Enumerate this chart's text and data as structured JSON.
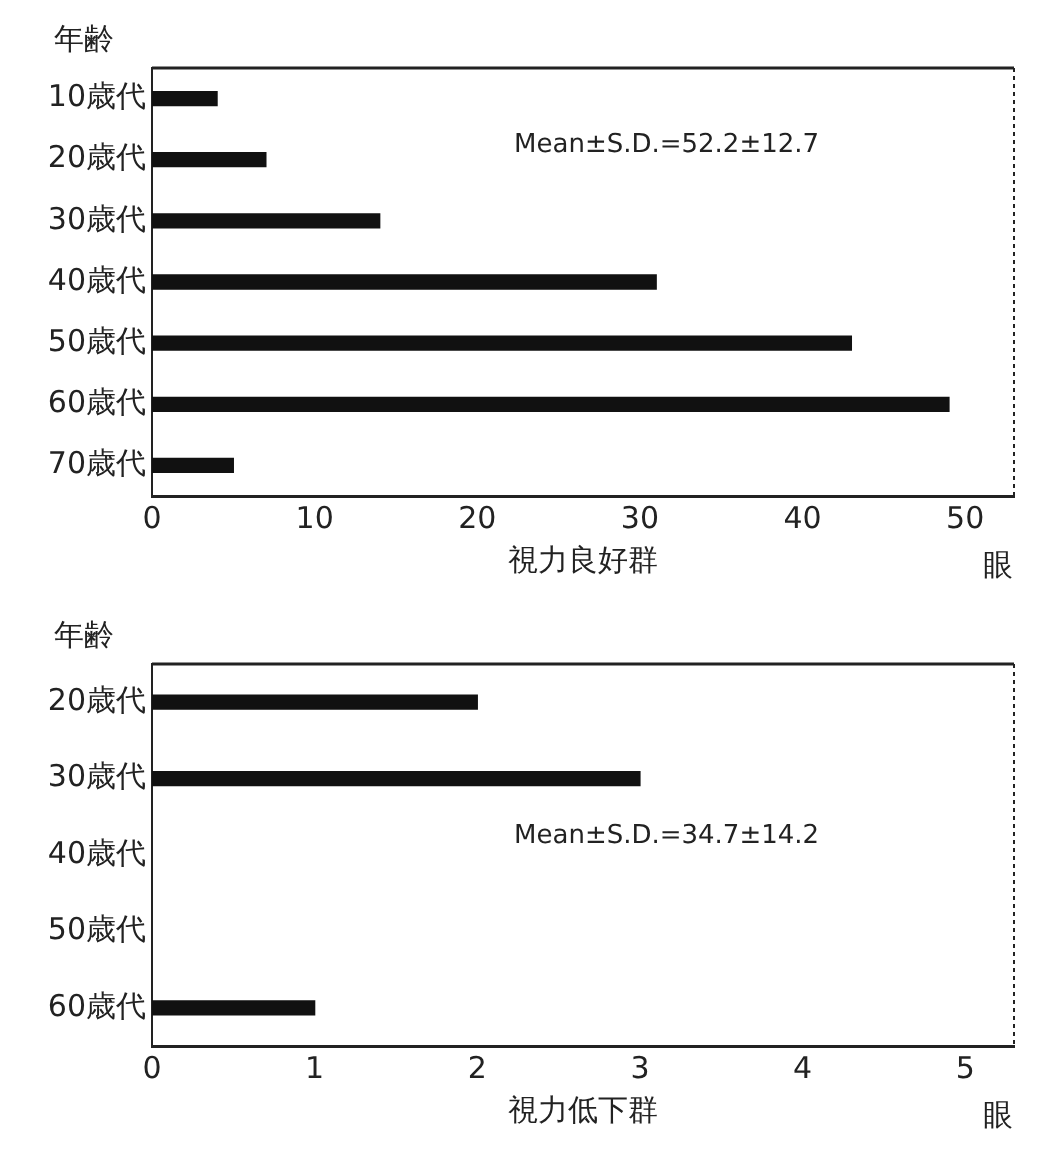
{
  "chart_data": [
    {
      "type": "bar",
      "orientation": "horizontal",
      "ylabel": "年齢",
      "xlabel": "視力良好群",
      "categories": [
        "10歳代",
        "20歳代",
        "30歳代",
        "40歳代",
        "50歳代",
        "60歳代",
        "70歳代"
      ],
      "values": [
        4,
        7,
        14,
        31,
        43,
        49,
        5
      ],
      "color": "#111111",
      "xlim": [
        0,
        53
      ],
      "xticks": [
        0,
        10,
        20,
        30,
        40,
        50
      ],
      "grid": false,
      "legend": false,
      "annotations": [
        "Mean±S.D.=52.2±12.7",
        "眼"
      ]
    },
    {
      "type": "bar",
      "orientation": "horizontal",
      "ylabel": "年齢",
      "xlabel": "視力低下群",
      "categories": [
        "20歳代",
        "30歳代",
        "40歳代",
        "50歳代",
        "60歳代"
      ],
      "values": [
        2,
        3,
        null,
        null,
        1
      ],
      "color": "#111111",
      "xlim": [
        0,
        5.3
      ],
      "xticks": [
        0,
        1,
        2,
        3,
        4,
        5
      ],
      "grid": false,
      "legend": false,
      "annotations": [
        "Mean±S.D.=34.7±14.2",
        "眼"
      ]
    }
  ]
}
